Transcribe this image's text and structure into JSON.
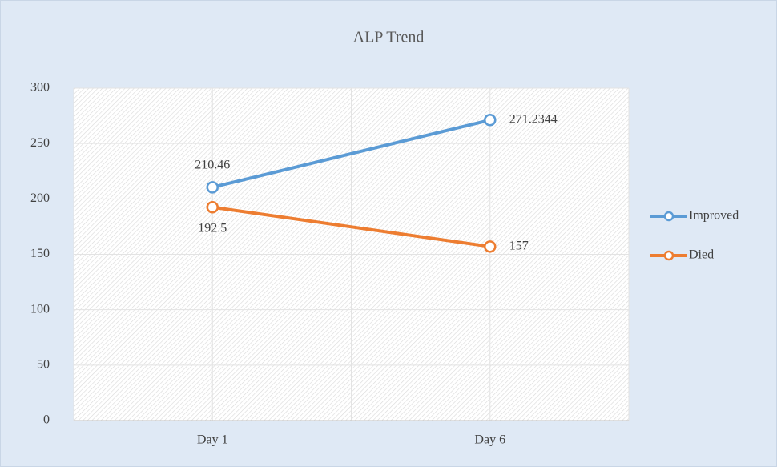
{
  "chart_data": {
    "type": "line",
    "title": "ALP Trend",
    "categories": [
      "Day 1",
      "Day 6"
    ],
    "series": [
      {
        "name": "Improved",
        "color": "#5b9bd5",
        "values": [
          210.46,
          271.2344
        ]
      },
      {
        "name": "Died",
        "color": "#ed7d31",
        "values": [
          192.5,
          157
        ]
      }
    ],
    "ylim": [
      0,
      300
    ],
    "yticks": [
      0,
      50,
      100,
      150,
      200,
      250,
      300
    ],
    "grid": true,
    "legend": "right"
  }
}
